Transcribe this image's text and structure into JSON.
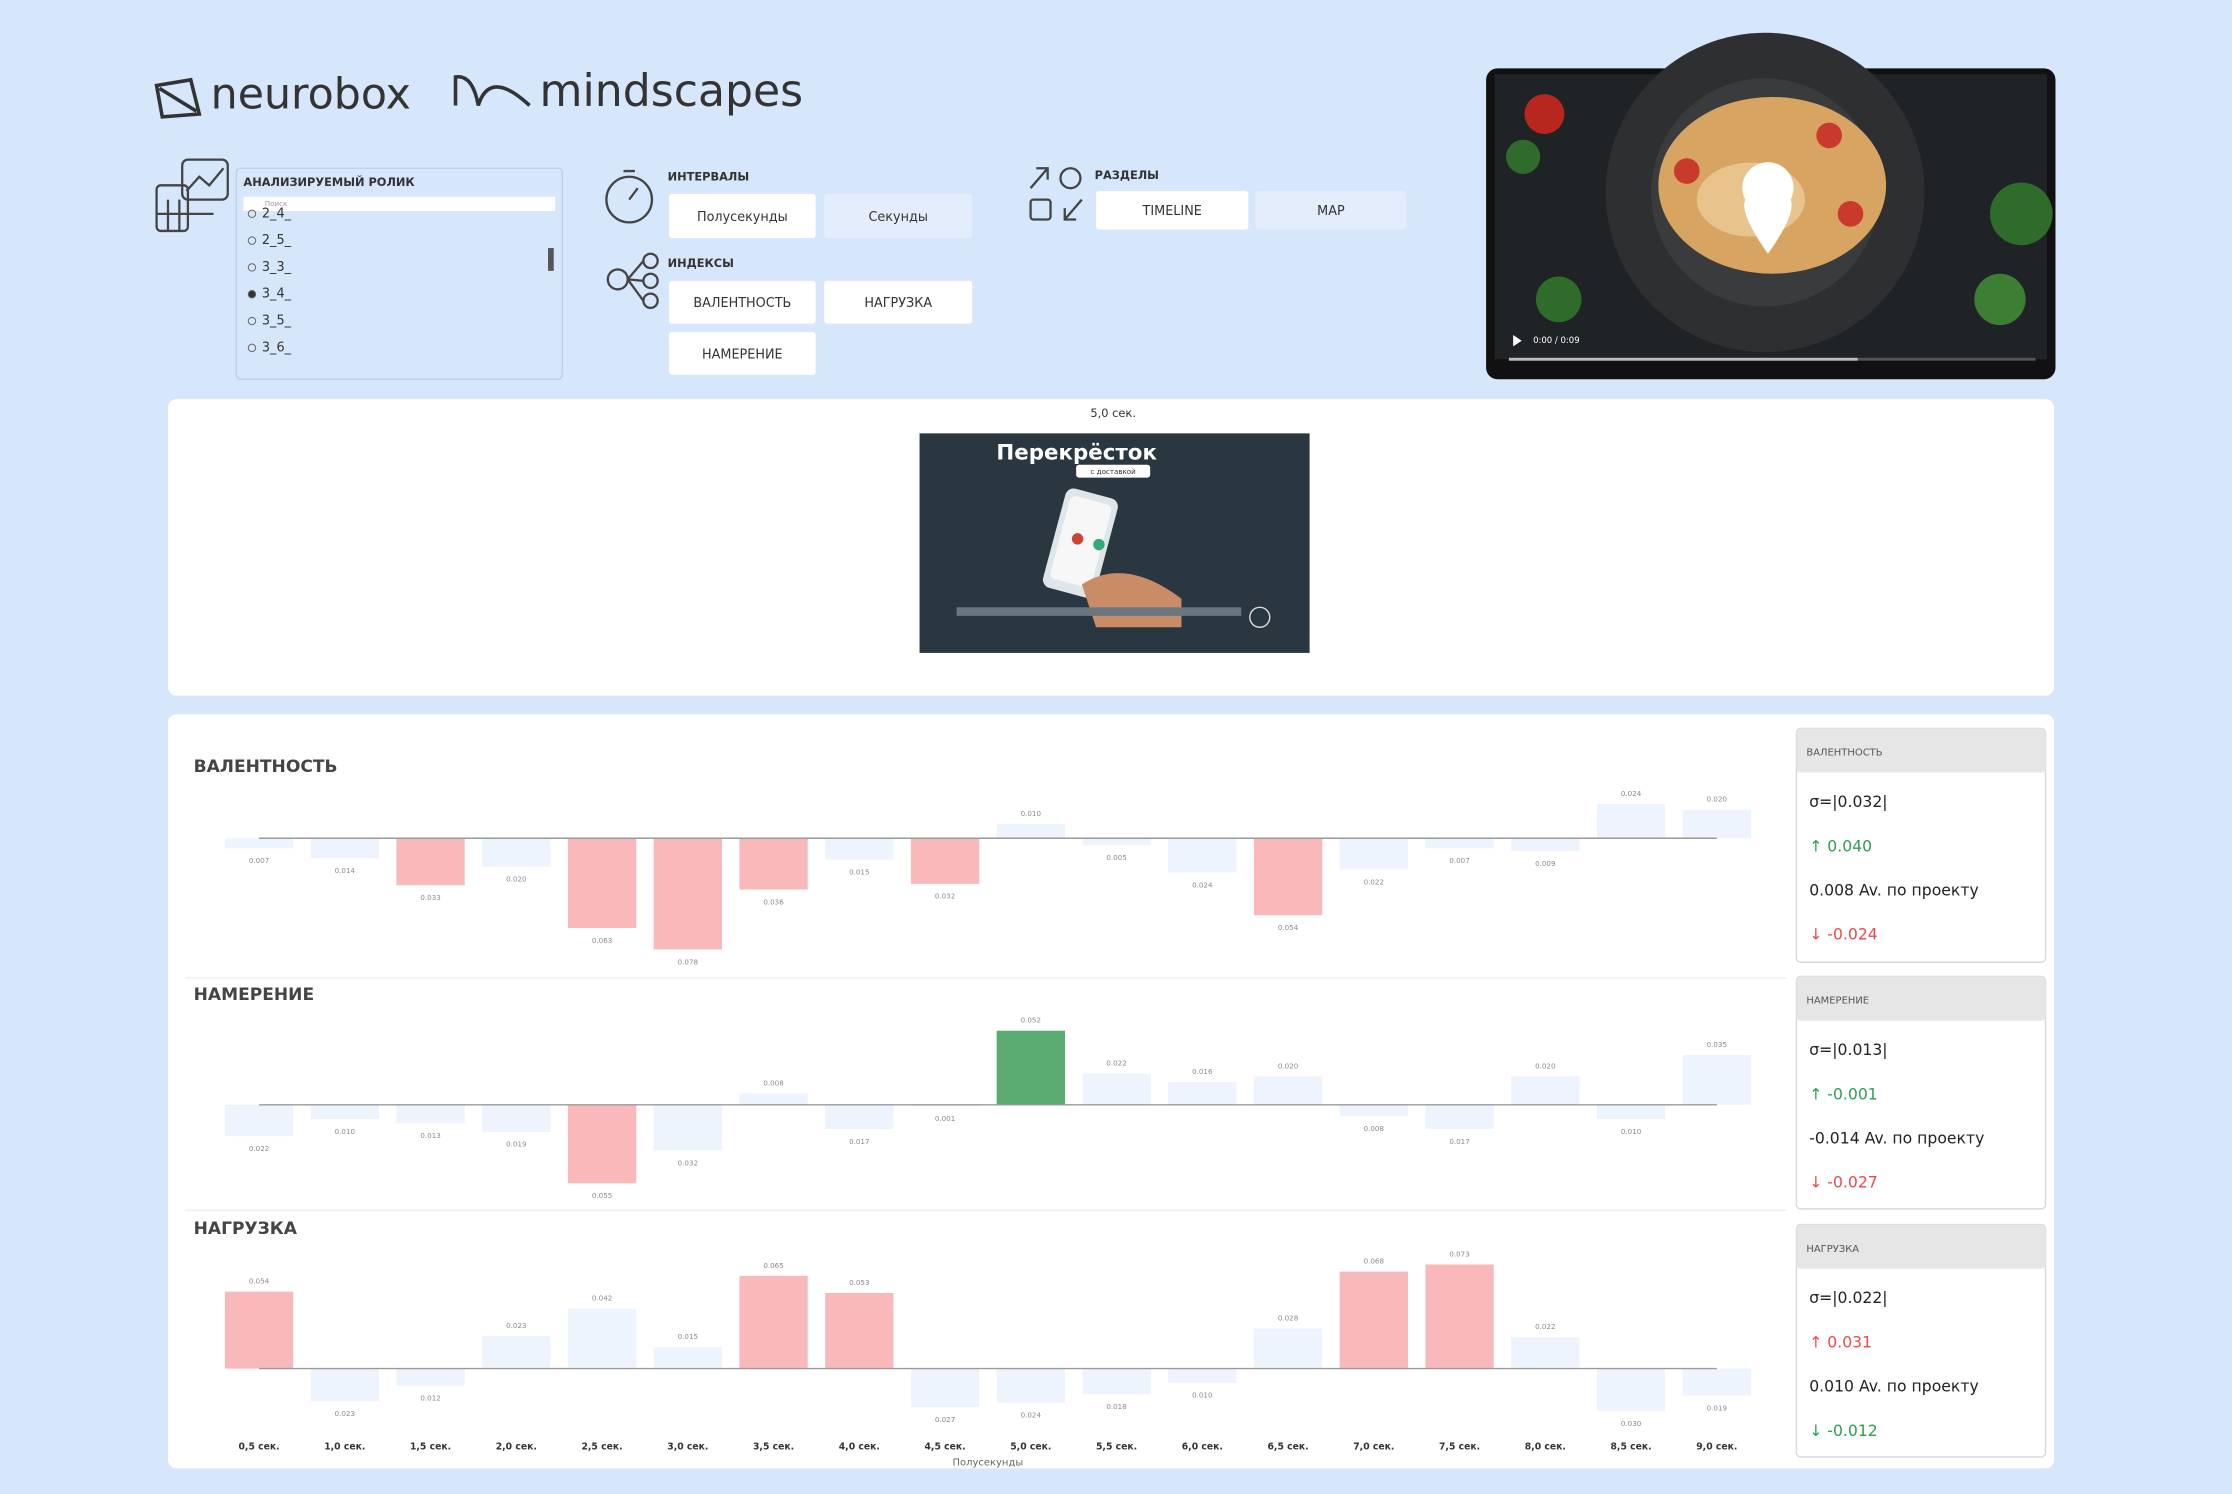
{
  "logos": {
    "left": "neurobox",
    "right": "mindscapes"
  },
  "slicer": {
    "label": "АНАЛИЗИРУЕМЫЙ РОЛИК",
    "search": "Поиск",
    "items": [
      "2_4_",
      "2_5_",
      "3_3_",
      "3_4_",
      "3_5_",
      "3_6_"
    ],
    "selected": 3
  },
  "intervals": {
    "label": "ИНТЕРВАЛЫ",
    "options": [
      "Полусекунды",
      "Секунды"
    ],
    "selected": 0
  },
  "indices": {
    "label": "ИНДЕКСЫ",
    "options": [
      "ВАЛЕНТНОСТЬ",
      "НАГРУЗКА",
      "НАМЕРЕНИЕ"
    ]
  },
  "sections": {
    "label": "РАЗДЕЛЫ",
    "options": [
      "TIMELINE",
      "MAP"
    ],
    "selected": 0
  },
  "video": {
    "time": "0:00 / 0:09"
  },
  "preview": {
    "caption": "5,0 сек.",
    "brand": "Перекрёсток",
    "tagline": "с доставкой"
  },
  "chart_data": [
    {
      "type": "bar",
      "title": "ВАЛЕНТНОСТЬ",
      "ylim": [
        -0.08,
        0.04
      ],
      "values": [
        -0.007,
        -0.014,
        -0.033,
        -0.02,
        -0.063,
        -0.078,
        -0.036,
        -0.015,
        -0.032,
        0.01,
        -0.005,
        -0.024,
        -0.054,
        -0.022,
        -0.007,
        -0.009,
        0.024,
        0.02
      ],
      "value_labels": [
        "0.007",
        "0.014",
        "0.033",
        "0.020",
        "0.063",
        "0.078",
        "0.036",
        "0.015",
        "0.032",
        "0.010",
        "0.005",
        "0.024",
        "0.054",
        "0.022",
        "0.007",
        "0.009",
        "0.024",
        "0.020"
      ],
      "colors": [
        "#eef4fd",
        "#eef4fd",
        "#f9b9bb",
        "#eef4fd",
        "#f9b9bb",
        "#f9b9bb",
        "#f9b9bb",
        "#eef4fd",
        "#f9b9bb",
        "#eef4fd",
        "#eef4fd",
        "#eef4fd",
        "#f9b9bb",
        "#eef4fd",
        "#eef4fd",
        "#eef4fd",
        "#eef4fd",
        "#eef4fd"
      ],
      "stats": {
        "title": "ВАЛЕНТНОСТЬ",
        "sigma": "σ=|0.032|",
        "upper": "↑ 0.040",
        "average": "0.008 Av. по проекту",
        "lower": "↓ -0.024",
        "upper_color": "#2e9e4f",
        "lower_color": "#e84b4b"
      }
    },
    {
      "type": "bar",
      "title": "НАМЕРЕНИЕ",
      "ylim": [
        -0.06,
        0.06
      ],
      "values": [
        -0.022,
        -0.01,
        -0.013,
        -0.019,
        -0.055,
        -0.032,
        0.008,
        -0.017,
        -0.001,
        0.052,
        0.022,
        0.016,
        0.02,
        -0.008,
        -0.017,
        0.02,
        -0.01,
        0.035
      ],
      "value_labels": [
        "0.022",
        "0.010",
        "0.013",
        "0.019",
        "0.055",
        "0.032",
        "0.008",
        "0.017",
        "0.001",
        "0.052",
        "0.022",
        "0.016",
        "0.020",
        "0.008",
        "0.017",
        "0.020",
        "0.010",
        "0.035"
      ],
      "colors": [
        "#eef4fd",
        "#eef4fd",
        "#eef4fd",
        "#eef4fd",
        "#f9b9bb",
        "#eef4fd",
        "#eef4fd",
        "#eef4fd",
        "#eef4fd",
        "#5aab72",
        "#eef4fd",
        "#eef4fd",
        "#eef4fd",
        "#eef4fd",
        "#eef4fd",
        "#eef4fd",
        "#eef4fd",
        "#eef4fd"
      ],
      "stats": {
        "title": "НАМЕРЕНИЕ",
        "sigma": "σ=|0.013|",
        "upper": "↑ -0.001",
        "average": "-0.014 Av. по проекту",
        "lower": "↓ -0.027",
        "upper_color": "#2e9e4f",
        "lower_color": "#e84b4b"
      }
    },
    {
      "type": "bar",
      "title": "НАГРУЗКА",
      "ylim": [
        -0.04,
        0.08
      ],
      "values": [
        0.054,
        -0.023,
        -0.012,
        0.023,
        0.042,
        0.015,
        0.065,
        0.053,
        -0.027,
        -0.024,
        -0.018,
        -0.01,
        0.028,
        0.068,
        0.073,
        0.022,
        -0.03,
        -0.019
      ],
      "value_labels": [
        "0.054",
        "0.023",
        "0.012",
        "0.023",
        "0.042",
        "0.015",
        "0.065",
        "0.053",
        "0.027",
        "0.024",
        "0.018",
        "0.010",
        "0.028",
        "0.068",
        "0.073",
        "0.022",
        "0.030",
        "0.019"
      ],
      "colors": [
        "#f9b9bb",
        "#eef4fd",
        "#eef4fd",
        "#eef4fd",
        "#eef4fd",
        "#eef4fd",
        "#f9b9bb",
        "#f9b9bb",
        "#eef4fd",
        "#eef4fd",
        "#eef4fd",
        "#eef4fd",
        "#eef4fd",
        "#f9b9bb",
        "#f9b9bb",
        "#eef4fd",
        "#eef4fd",
        "#eef4fd"
      ],
      "categories": [
        "0,5 сек.",
        "1,0 сек.",
        "1,5 сек.",
        "2,0 сек.",
        "2,5 сек.",
        "3,0 сек.",
        "3,5 сек.",
        "4,0 сек.",
        "4,5 сек.",
        "5,0 сек.",
        "5,5 сек.",
        "6,0 сек.",
        "6,5 сек.",
        "7,0 сек.",
        "7,5 сек.",
        "8,0 сек.",
        "8,5 сек.",
        "9,0 сек."
      ],
      "x_label": "Полусекунды",
      "stats": {
        "title": "НАГРУЗКА",
        "sigma": "σ=|0.022|",
        "upper": "↑ 0.031",
        "average": "0.010 Av. по проекту",
        "lower": "↓ -0.012",
        "upper_color": "#e84b4b",
        "lower_color": "#2e9e4f"
      }
    }
  ]
}
